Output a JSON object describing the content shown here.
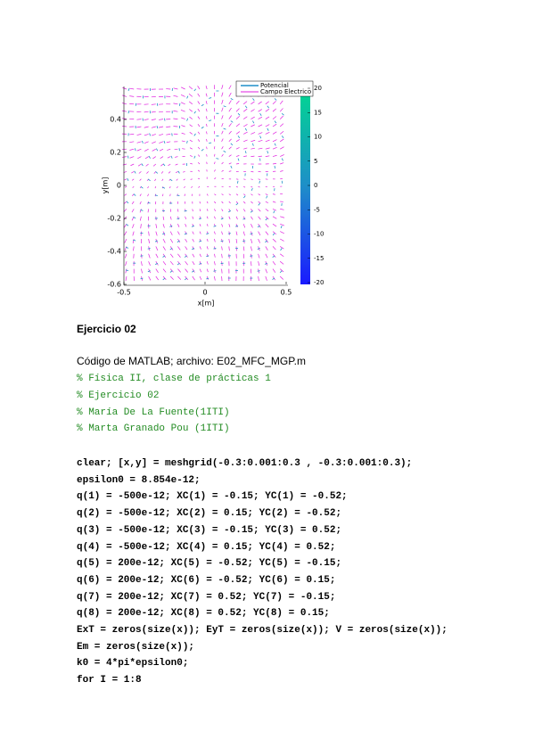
{
  "figure": {
    "xlabel": "x[m]",
    "ylabel": "y[m]",
    "xlim": [
      -0.5,
      0.5
    ],
    "ylim": [
      -0.6,
      0.6
    ],
    "xticks": [
      -0.5,
      0,
      0.5
    ],
    "yticks": [
      -0.6,
      -0.4,
      -0.2,
      0,
      0.2,
      0.4
    ],
    "colorbar_lim": [
      -20,
      20
    ],
    "colorbar_ticks": [
      -20,
      -15,
      -10,
      -5,
      0,
      5,
      10,
      15,
      20
    ],
    "legend": [
      "Potencial",
      "Campo Electrico"
    ]
  },
  "section": {
    "title": "Ejercicio 02",
    "intro": "Código de MATLAB; archivo: E02_MFC_MGP.m"
  },
  "comments": [
    "% Física II, clase de prácticas 1",
    "% Ejercicio 02",
    "% María De La Fuente(1ITI)",
    "% Marta Granado Pou (1ITI)"
  ],
  "code": [
    "clear; [x,y] = meshgrid(-0.3:0.001:0.3 , -0.3:0.001:0.3);",
    "epsilon0 = 8.854e-12;",
    "q(1) = -500e-12; XC(1) = -0.15; YC(1) = -0.52;",
    "q(2) = -500e-12; XC(2) = 0.15; YC(2) = -0.52;",
    "q(3) = -500e-12; XC(3) = -0.15; YC(3) = 0.52;",
    "q(4) = -500e-12; XC(4) = 0.15; YC(4) = 0.52;",
    "q(5) = 200e-12; XC(5) = -0.52; YC(5) = -0.15;",
    "q(6) = 200e-12; XC(6) = -0.52; YC(6) = 0.15;",
    "q(7) = 200e-12; XC(7) = 0.52; YC(7) = -0.15;",
    "q(8) = 200e-12; XC(8) = 0.52; YC(8) = 0.15;",
    "ExT = zeros(size(x)); EyT = zeros(size(x)); V = zeros(size(x));",
    "Em = zeros(size(x));",
    "k0 = 4*pi*epsilon0;",
    "for I = 1:8"
  ]
}
